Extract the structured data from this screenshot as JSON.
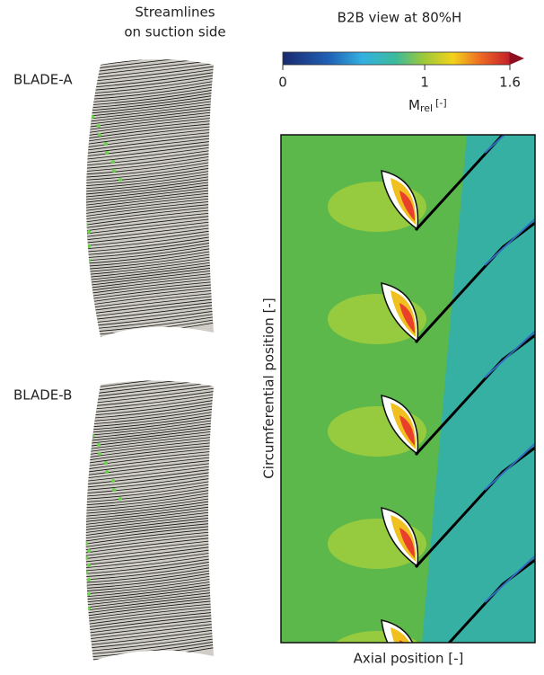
{
  "left_panel": {
    "title_line1": "Streamlines",
    "title_line2": "on suction side",
    "blades": [
      "BLADE-A",
      "BLADE-B"
    ]
  },
  "right_panel": {
    "title": "B2B view at 80%H",
    "colorbar": {
      "lim": [
        0,
        1.6
      ],
      "ticks": [
        0,
        1,
        1.6
      ],
      "label": "M",
      "label_sub": "rel",
      "label_unit": "[-]"
    },
    "y_label": "Circumferential position [-]",
    "x_label": "Axial position [-]"
  }
}
